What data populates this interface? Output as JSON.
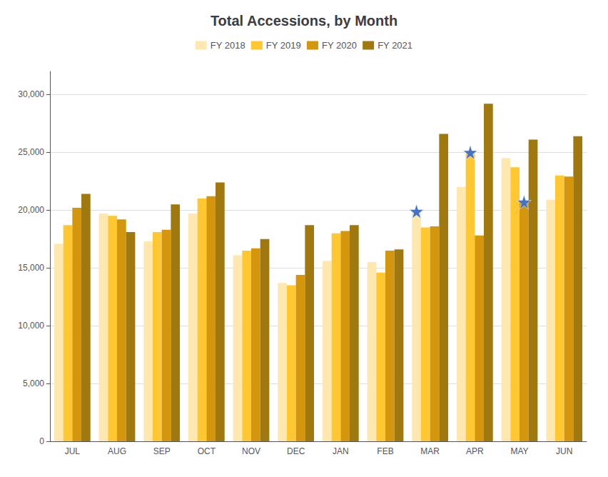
{
  "chart_data": {
    "type": "bar",
    "title": "Total Accessions, by Month",
    "categories": [
      "JUL",
      "AUG",
      "SEP",
      "OCT",
      "NOV",
      "DEC",
      "JAN",
      "FEB",
      "MAR",
      "APR",
      "MAY",
      "JUN"
    ],
    "series": [
      {
        "name": "FY 2018",
        "color": "#FFE8B0",
        "values": [
          17100,
          19700,
          17300,
          19700,
          16100,
          13700,
          15600,
          15500,
          19900,
          22000,
          24500,
          20900
        ],
        "stars": [
          {
            "category": "MAR",
            "value": 19900,
            "marker": "star",
            "color": "#4472C4"
          }
        ]
      },
      {
        "name": "FY 2019",
        "color": "#FFC832",
        "values": [
          18700,
          19500,
          18100,
          21000,
          16500,
          13500,
          18000,
          14600,
          18500,
          25000,
          23700,
          23000
        ],
        "stars": [
          {
            "category": "APR",
            "value": 25000,
            "marker": "star",
            "color": "#4472C4"
          }
        ]
      },
      {
        "name": "FY 2020",
        "color": "#D4960C",
        "values": [
          20200,
          19200,
          18300,
          21200,
          16700,
          14400,
          18200,
          16500,
          18600,
          17800,
          20700,
          22900
        ],
        "stars": [
          {
            "category": "MAY",
            "value": 20700,
            "marker": "star",
            "color": "#4472C4"
          }
        ]
      },
      {
        "name": "FY 2021",
        "color": "#A07810",
        "values": [
          21400,
          18100,
          20500,
          22400,
          17500,
          18700,
          18700,
          16600,
          26600,
          29200,
          26100,
          26400
        ]
      }
    ],
    "ylim": [
      0,
      32000
    ],
    "yticks": [
      0,
      {
        "value": 5000,
        "label": "5,000"
      },
      {
        "value": 10000,
        "label": "10,000"
      },
      {
        "value": 15000,
        "label": "15,000"
      },
      {
        "value": 20000,
        "label": "20,000"
      },
      {
        "value": 25000,
        "label": "25,000"
      },
      {
        "value": 30000,
        "label": "30,000"
      }
    ],
    "grid": true,
    "legend": "top"
  }
}
